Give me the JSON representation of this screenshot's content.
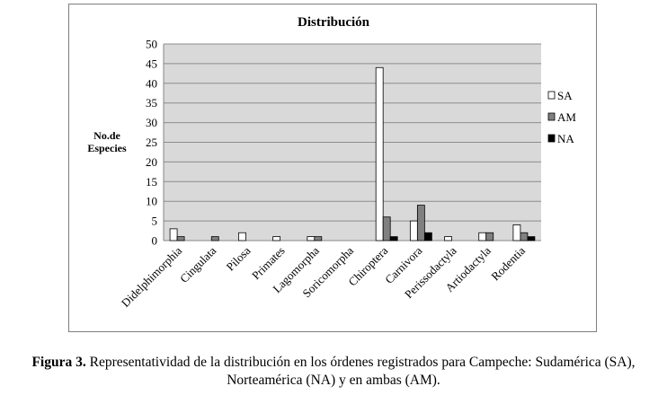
{
  "chart_data": {
    "type": "bar",
    "title": "Distribución",
    "ylabel": "No.de Especies",
    "xlabel": "",
    "ylim": [
      0,
      50
    ],
    "yticks": [
      0,
      5,
      10,
      15,
      20,
      25,
      30,
      35,
      40,
      45,
      50
    ],
    "grid": true,
    "legend_position": "right",
    "categories": [
      "Didelphimorphia",
      "Cingulata",
      "Pilosa",
      "Primates",
      "Lagomorpha",
      "Soricomorpha",
      "Chiroptera",
      "Carnivora",
      "Perissodactyla",
      "Artiodactyla",
      "Rodentia"
    ],
    "series": [
      {
        "name": "SA",
        "color": "#ffffff",
        "values": [
          3,
          0,
          2,
          1,
          1,
          0,
          44,
          5,
          1,
          2,
          4
        ]
      },
      {
        "name": "AM",
        "color": "#808080",
        "values": [
          1,
          1,
          0,
          0,
          1,
          0,
          6,
          9,
          0,
          2,
          2
        ]
      },
      {
        "name": "NA",
        "color": "#000000",
        "values": [
          0,
          0,
          0,
          0,
          0,
          0,
          1,
          2,
          0,
          0,
          1
        ]
      }
    ]
  },
  "caption": {
    "label": "Figura 3.",
    "text": "Representatividad de la distribución en los órdenes registrados para Campeche: Sudamérica (SA), Norteamérica (NA) y en ambas (AM)."
  }
}
